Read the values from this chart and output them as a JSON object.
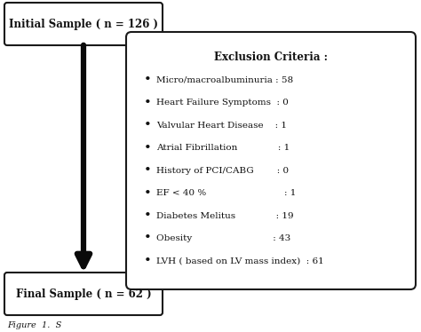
{
  "initial_box_text": "Initial Sample ( n = 126 )",
  "final_box_text": "Final Sample ( n = 62 )",
  "exclusion_title": "Exclusion Criteria :",
  "exclusion_items": [
    "Micro/macroalbuminuria : 58",
    "Heart Failure Symptoms  : 0",
    "Valvular Heart Disease    : 1",
    "Atrial Fibrillation              : 1",
    "History of PCI/CABG        : 0",
    "EF < 40 %                           : 1",
    "Diabetes Melitus              : 19",
    "Obesity                            : 43",
    "LVH ( based on LV mass index)  : 61"
  ],
  "bg_color": "#ffffff",
  "box_edge_color": "#1a1a1a",
  "box_fill_color": "#ffffff",
  "arrow_color": "#0a0a0a",
  "text_color": "#111111",
  "font_size_box": 8.5,
  "font_size_excl_title": 8.5,
  "font_size_excl_items": 7.5,
  "figure_width": 4.74,
  "figure_height": 3.74,
  "caption": "Figure  1.  S"
}
